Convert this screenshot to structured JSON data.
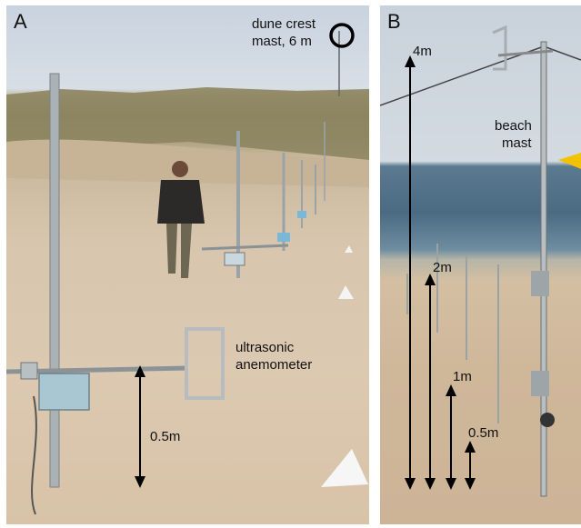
{
  "panel_a": {
    "letter": "A",
    "dune_label_line1": "dune crest",
    "dune_label_line2": "mast, 6 m",
    "anemometer_line1": "ultrasonic",
    "anemometer_line2": "anemometer",
    "height_label": "0.5m"
  },
  "panel_b": {
    "letter": "B",
    "mast_line1": "beach",
    "mast_line2": "mast",
    "h4": "4m",
    "h2": "2m",
    "h1": "1m",
    "h05": "0.5m"
  }
}
